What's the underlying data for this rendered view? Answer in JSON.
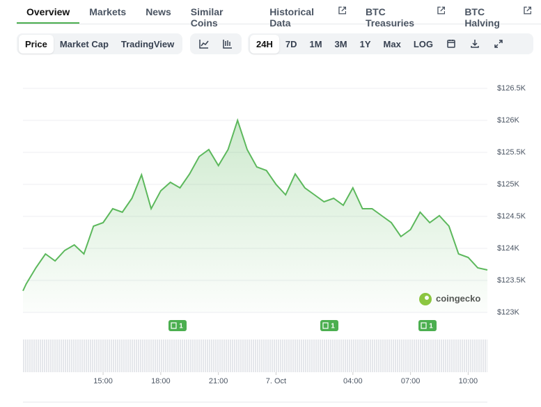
{
  "tabs": [
    "Overview",
    "Markets",
    "News",
    "Similar Coins",
    "Historical Data",
    "BTC Treasuries",
    "BTC Halving"
  ],
  "toolbar": {
    "data_kind": [
      "Price",
      "Market Cap",
      "TradingView"
    ],
    "ranges": [
      "24H",
      "7D",
      "1M",
      "3M",
      "1Y",
      "Max",
      "LOG"
    ]
  },
  "watermark": "coingecko",
  "chart_data": {
    "type": "line",
    "x": [
      10.83,
      11,
      11.5,
      12,
      12.5,
      13,
      13.5,
      14,
      14.5,
      15,
      15.5,
      16,
      16.5,
      17,
      17.5,
      18,
      18.5,
      19,
      19.5,
      20,
      20.5,
      21,
      21.5,
      22,
      22.5,
      23,
      23.5,
      24,
      24.5,
      25,
      25.5,
      26,
      26.5,
      27,
      27.5,
      28,
      28.5,
      29,
      29.5,
      30,
      30.5,
      31,
      31.5,
      32,
      32.5,
      33,
      33.5,
      34,
      34.5,
      35
    ],
    "series": [
      {
        "name": "Price",
        "color": "#5cb85c",
        "values": [
          123337,
          123446,
          123696,
          123913,
          123804,
          123967,
          124054,
          123913,
          124348,
          124402,
          124620,
          124565,
          124783,
          125150,
          124620,
          124900,
          125033,
          124946,
          125163,
          125435,
          125543,
          125293,
          125543,
          126000,
          125543,
          125272,
          125217,
          125000,
          124837,
          125163,
          124946,
          124837,
          124728,
          124783,
          124674,
          124946,
          124620,
          124620,
          124511,
          124402,
          124185,
          124293,
          124565,
          124402,
          124511,
          124348,
          123913,
          123859,
          123696,
          123663
        ]
      }
    ],
    "xlim": [
      10.83,
      35
    ],
    "xticks": [
      {
        "value": 15,
        "label": "15:00"
      },
      {
        "value": 18,
        "label": "18:00"
      },
      {
        "value": 21,
        "label": "21:00"
      },
      {
        "value": 24,
        "label": "7. Oct"
      },
      {
        "value": 28,
        "label": "04:00"
      },
      {
        "value": 31,
        "label": "07:00"
      },
      {
        "value": 34,
        "label": "10:00"
      }
    ],
    "ylim": [
      123000,
      126800
    ],
    "yticks": [
      {
        "value": 123000,
        "label": "$123K"
      },
      {
        "value": 123500,
        "label": "$123.5K"
      },
      {
        "value": 124000,
        "label": "$124K"
      },
      {
        "value": 124500,
        "label": "$124.5K"
      },
      {
        "value": 125000,
        "label": "$125K"
      },
      {
        "value": 125500,
        "label": "$125.5K"
      },
      {
        "value": 126000,
        "label": "$126K"
      },
      {
        "value": 126500,
        "label": "$126.5K"
      }
    ],
    "grid": true,
    "annotations": [
      "1",
      "1",
      "1"
    ]
  }
}
